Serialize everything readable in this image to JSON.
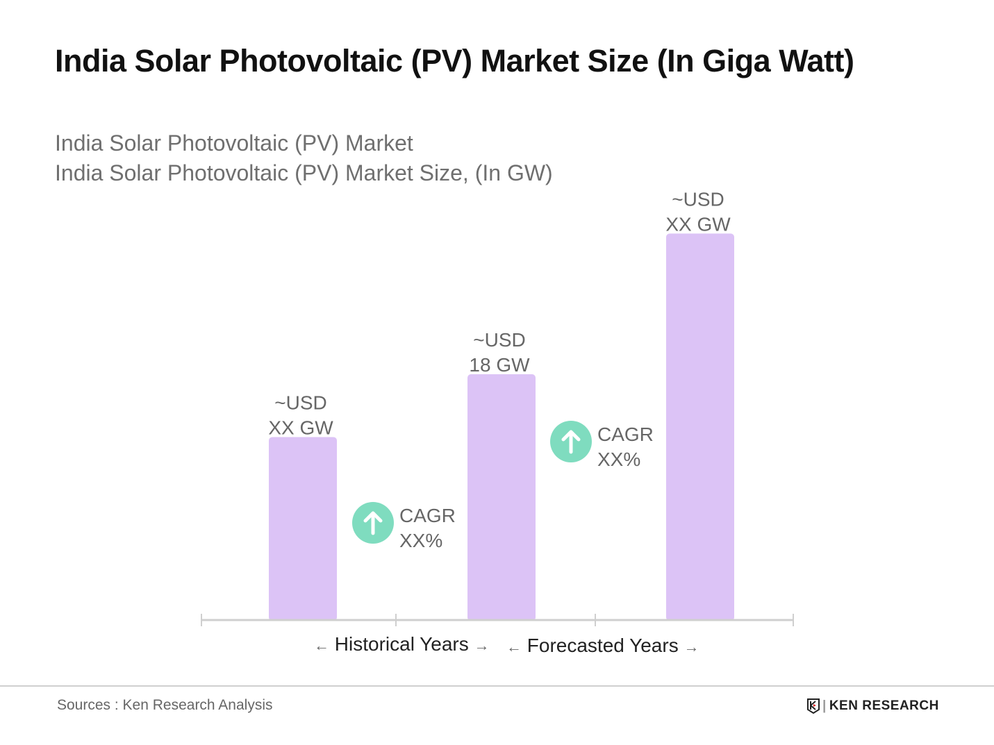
{
  "chart_data": {
    "type": "bar",
    "title": "India Solar Photovoltaic (PV) Market Size (In Giga Watt)",
    "subtitle": [
      "India Solar Photovoltaic (PV) Market",
      "India Solar Photovoltaic (PV) Market Size, (In GW)"
    ],
    "categories": [
      "",
      "",
      ""
    ],
    "values": [
      13.4,
      18,
      28.3
    ],
    "data_labels": [
      [
        "~USD",
        "XX GW"
      ],
      [
        "~USD",
        "18 GW"
      ],
      [
        "~USD",
        "XX GW"
      ]
    ],
    "ylim": [
      0,
      30
    ],
    "grid": false,
    "bar_color": "#dcc3f6",
    "annotations": [
      {
        "text": [
          "CAGR",
          "XX%"
        ],
        "icon": "arrow-up-circle-icon",
        "color": "#7fdcbf"
      },
      {
        "text": [
          "CAGR",
          "XX%"
        ],
        "icon": "arrow-up-circle-icon",
        "color": "#7fdcbf"
      }
    ],
    "period_labels": [
      "Historical Years",
      "Forecasted Years"
    ]
  },
  "footer": {
    "source": "Sources : Ken Research Analysis",
    "logo": "KEN RESEARCH"
  }
}
